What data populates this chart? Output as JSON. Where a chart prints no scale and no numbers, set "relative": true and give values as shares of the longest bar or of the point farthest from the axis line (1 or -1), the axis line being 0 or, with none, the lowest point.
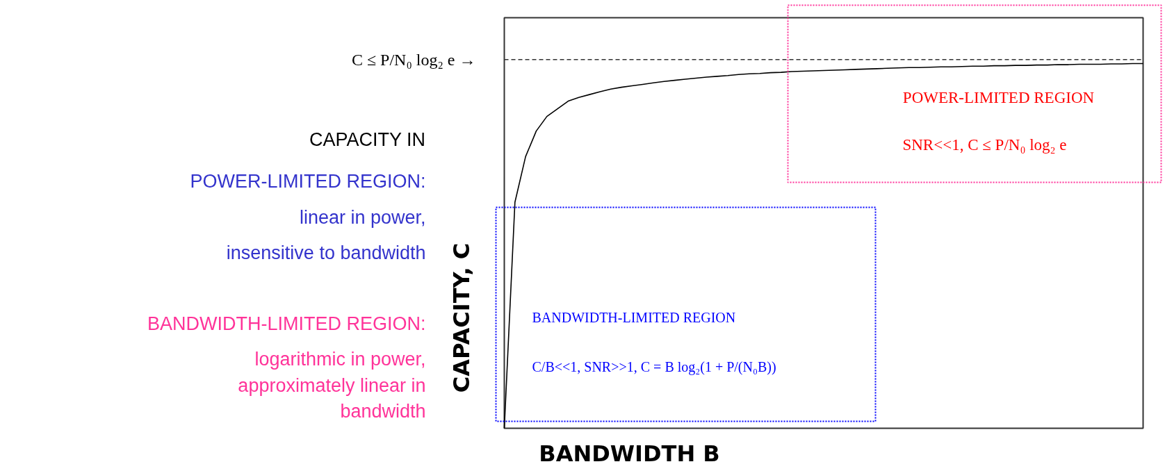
{
  "chart_data": {
    "type": "line",
    "relative": true,
    "xlabel": "BANDWIDTH B",
    "ylabel": "CAPACITY, C",
    "categories": [
      null,
      null,
      null,
      null,
      null,
      null,
      null,
      null,
      null,
      null,
      null,
      null,
      null,
      null,
      null,
      null,
      null,
      null,
      null,
      null,
      null,
      null,
      null,
      null,
      null,
      null,
      null,
      null,
      null,
      null,
      null,
      null,
      null,
      null,
      null,
      null,
      null,
      null,
      null,
      null,
      null,
      null,
      null,
      null,
      null,
      null,
      null,
      null,
      null,
      null,
      null,
      null,
      null,
      null,
      null,
      null,
      null,
      null,
      null,
      null,
      null
    ],
    "series": [
      {
        "color": "#000000",
        "values": [
          0,
          0.62,
          0.745,
          0.815,
          0.855,
          0.876,
          0.897,
          0.907,
          0.915,
          0.923,
          0.93,
          0.935,
          0.939,
          0.943,
          0.947,
          0.951,
          0.954,
          0.957,
          0.96,
          0.963,
          0.965,
          0.967,
          0.97,
          0.972,
          0.973,
          0.975,
          0.976,
          0.978,
          0.979,
          0.98,
          0.981,
          0.982,
          0.983,
          0.984,
          0.985,
          0.986,
          0.987,
          0.988,
          0.989,
          0.989,
          0.99,
          0.991,
          0.991,
          0.992,
          0.993,
          0.993,
          0.994,
          0.994,
          0.995,
          0.995,
          0.996,
          0.996,
          0.997,
          0.997,
          0.998,
          0.998,
          0.998,
          0.999,
          0.999,
          1,
          1
        ]
      }
    ],
    "ref_lines": [
      {
        "axis": "y",
        "value": 1.011,
        "label": "C ≤ P/N₀ log₂ e →",
        "line_style": "dashed",
        "color": "#333333"
      }
    ],
    "annotations": [
      "POWER-LIMITED REGION",
      "SNR<<1, C ≤ P/N₀ log₂ e",
      "BANDWIDTH-LIMITED REGION",
      "C/B<<1, SNR>>1, C = B log₂(1 + P/(N₀B))",
      "CAPACITY IN",
      "POWER-LIMITED REGION:",
      "linear in power,",
      "insensitive to bandwidth",
      "BANDWIDTH-LIMITED REGION:",
      "logarithmic in power,",
      "approximately linear in bandwidth"
    ]
  }
}
